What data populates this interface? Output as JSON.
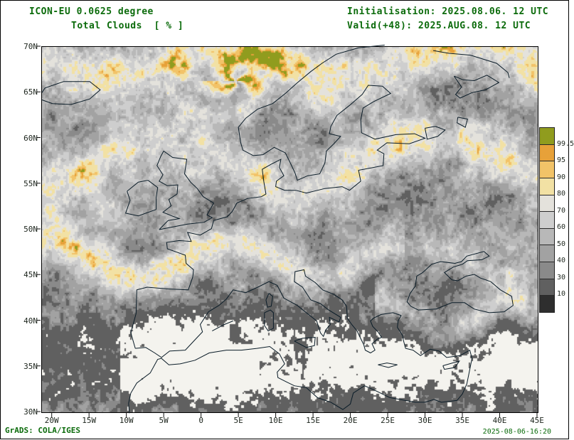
{
  "header": {
    "model_line": "ICON-EU 0.0625 degree",
    "field_line": "Total Clouds  [ % ]",
    "init_line": "Initialisation: 2025.08.06. 12 UTC",
    "valid_line": "Valid(+48): 2025.AUG.08. 12 UTC"
  },
  "footer": {
    "left": "GrADS: COLA/IGES",
    "right": "2025-08-06-16:20"
  },
  "chart_data": {
    "type": "heatmap",
    "title": "ICON-EU 0.0625 degree — Total Clouds [%]",
    "model": "ICON-EU 0.0625 degree",
    "variable": "Total Clouds",
    "units": "%",
    "initialisation": "2025.08.06. 12 UTC",
    "valid": "2025.AUG.08. 12 UTC (+48h)",
    "projection": "latlon",
    "grid": false,
    "lon_range": [
      -21.4,
      45
    ],
    "lat_range": [
      30,
      70
    ],
    "lon_ticks": [
      {
        "label": "20W",
        "value": -20
      },
      {
        "label": "15W",
        "value": -15
      },
      {
        "label": "10W",
        "value": -10
      },
      {
        "label": "5W",
        "value": -5
      },
      {
        "label": "0",
        "value": 0
      },
      {
        "label": "5E",
        "value": 5
      },
      {
        "label": "10E",
        "value": 10
      },
      {
        "label": "15E",
        "value": 15
      },
      {
        "label": "20E",
        "value": 20
      },
      {
        "label": "25E",
        "value": 25
      },
      {
        "label": "30E",
        "value": 30
      },
      {
        "label": "35E",
        "value": 35
      },
      {
        "label": "40E",
        "value": 40
      },
      {
        "label": "45E",
        "value": 45
      }
    ],
    "lat_ticks": [
      {
        "label": "70N",
        "value": 70
      },
      {
        "label": "65N",
        "value": 65
      },
      {
        "label": "60N",
        "value": 60
      },
      {
        "label": "55N",
        "value": 55
      },
      {
        "label": "50N",
        "value": 50
      },
      {
        "label": "45N",
        "value": 45
      },
      {
        "label": "40N",
        "value": 40
      },
      {
        "label": "35N",
        "value": 35
      },
      {
        "label": "30N",
        "value": 30
      }
    ],
    "colorbar": {
      "orientation": "vertical",
      "position": "right",
      "labels": [
        "99.5",
        "95",
        "90",
        "80",
        "70",
        "60",
        "50",
        "40",
        "30",
        "10"
      ],
      "levels_percent": [
        10,
        30,
        40,
        50,
        60,
        70,
        80,
        90,
        95,
        99.5
      ],
      "colors_low_to_high": [
        "#2e2e2e",
        "#606060",
        "#8a8a8a",
        "#a2a2a2",
        "#b8b8b8",
        "#cecece",
        "#e4e2dc",
        "#f2e1a4",
        "#f2c368",
        "#e7a139",
        "#909c1e"
      ],
      "clear_color": "#f4f3ee"
    },
    "field_summary": "Overcast (olive) and broken-cloud (orange/cream) bands across the北 Atlantic, British Isles, Scandinavia, Baltics and the Alps; cyclonic swirl over the Norwegian Sea; mostly clear (white) Mediterranean, Iberia interior and North Africa with scattered gray patches.",
    "colors": {
      "title_text": "#0b6b0b",
      "axis_text": "#1c241c",
      "coastline": "#0a1c28",
      "frame": "#000000"
    }
  }
}
